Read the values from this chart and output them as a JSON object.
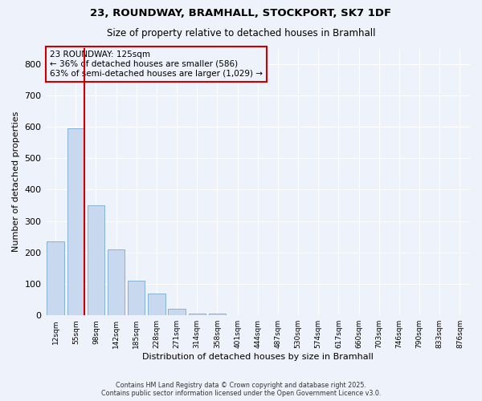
{
  "title_line1": "23, ROUNDWAY, BRAMHALL, STOCKPORT, SK7 1DF",
  "title_line2": "Size of property relative to detached houses in Bramhall",
  "xlabel": "Distribution of detached houses by size in Bramhall",
  "ylabel": "Number of detached properties",
  "bar_color": "#c8d8ee",
  "bar_edge_color": "#7aaad0",
  "annotation_box_color": "#cc0000",
  "annotation_text": "23 ROUNDWAY: 125sqm\n← 36% of detached houses are smaller (586)\n63% of semi-detached houses are larger (1,029) →",
  "vline_color": "#cc0000",
  "vline_bar_index": 2,
  "categories": [
    "12sqm",
    "55sqm",
    "98sqm",
    "142sqm",
    "185sqm",
    "228sqm",
    "271sqm",
    "314sqm",
    "358sqm",
    "401sqm",
    "444sqm",
    "487sqm",
    "530sqm",
    "574sqm",
    "617sqm",
    "660sqm",
    "703sqm",
    "746sqm",
    "790sqm",
    "833sqm",
    "876sqm"
  ],
  "values": [
    235,
    595,
    350,
    210,
    110,
    70,
    20,
    5,
    5,
    0,
    0,
    0,
    0,
    0,
    0,
    0,
    0,
    0,
    0,
    0,
    0
  ],
  "ylim": [
    0,
    850
  ],
  "yticks": [
    0,
    100,
    200,
    300,
    400,
    500,
    600,
    700,
    800
  ],
  "footnote": "Contains HM Land Registry data © Crown copyright and database right 2025.\nContains public sector information licensed under the Open Government Licence v3.0.",
  "background_color": "#eef2fa"
}
